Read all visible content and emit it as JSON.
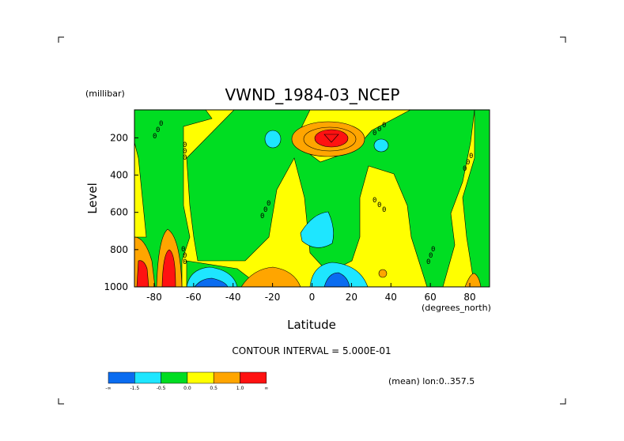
{
  "chart_data": {
    "type": "heatmap",
    "title": "VWND_1984-03_NCEP",
    "xlabel": "Latitude",
    "ylabel": "Level",
    "x_units": "(degrees_north)",
    "y_units": "(millibar)",
    "xlim": [
      -90,
      90
    ],
    "ylim": [
      1000,
      50
    ],
    "x_ticks": [
      -80,
      -60,
      -40,
      -20,
      0,
      20,
      40,
      60,
      80
    ],
    "y_ticks": [
      200,
      400,
      600,
      800,
      1000
    ],
    "contour_interval_text": "CONTOUR INTERVAL = 5.000E-01",
    "mean_text": "(mean) lon:0..357.5",
    "colorbar": {
      "labels": [
        "-∞",
        "-1.5",
        "-0.5",
        "0.0",
        "0.5",
        "1.0",
        "∞"
      ],
      "colors": [
        "#0a6cf0",
        "#1ee6ff",
        "#00dd22",
        "#00dd22",
        "#ffff00",
        "#ffa500",
        "#ff1111"
      ]
    },
    "regions": [
      {
        "level": "positive strong",
        "color": "#ff1111",
        "lat_center": 10,
        "lev_center": 175
      },
      {
        "level": "positive",
        "color": "#ffa500",
        "lat_center": 10,
        "lev_center": 180
      },
      {
        "level": "positive strong",
        "color": "#ff1111",
        "lat_center": -87,
        "lev_center": 920
      },
      {
        "level": "positive strong",
        "color": "#ff1111",
        "lat_center": -74,
        "lev_center": 920
      },
      {
        "level": "negative strong",
        "color": "#0a6cf0",
        "lat_center": -52,
        "lev_center": 990
      },
      {
        "level": "negative strong",
        "color": "#0a6cf0",
        "lat_center": 12,
        "lev_center": 980
      },
      {
        "level": "negative",
        "color": "#1ee6ff",
        "lat_center": 10,
        "lev_center": 700
      },
      {
        "level": "negative",
        "color": "#1ee6ff",
        "lat_center": -26,
        "lev_center": 190
      },
      {
        "level": "negative",
        "color": "#1ee6ff",
        "lat_center": 34,
        "lev_center": 220
      }
    ]
  }
}
